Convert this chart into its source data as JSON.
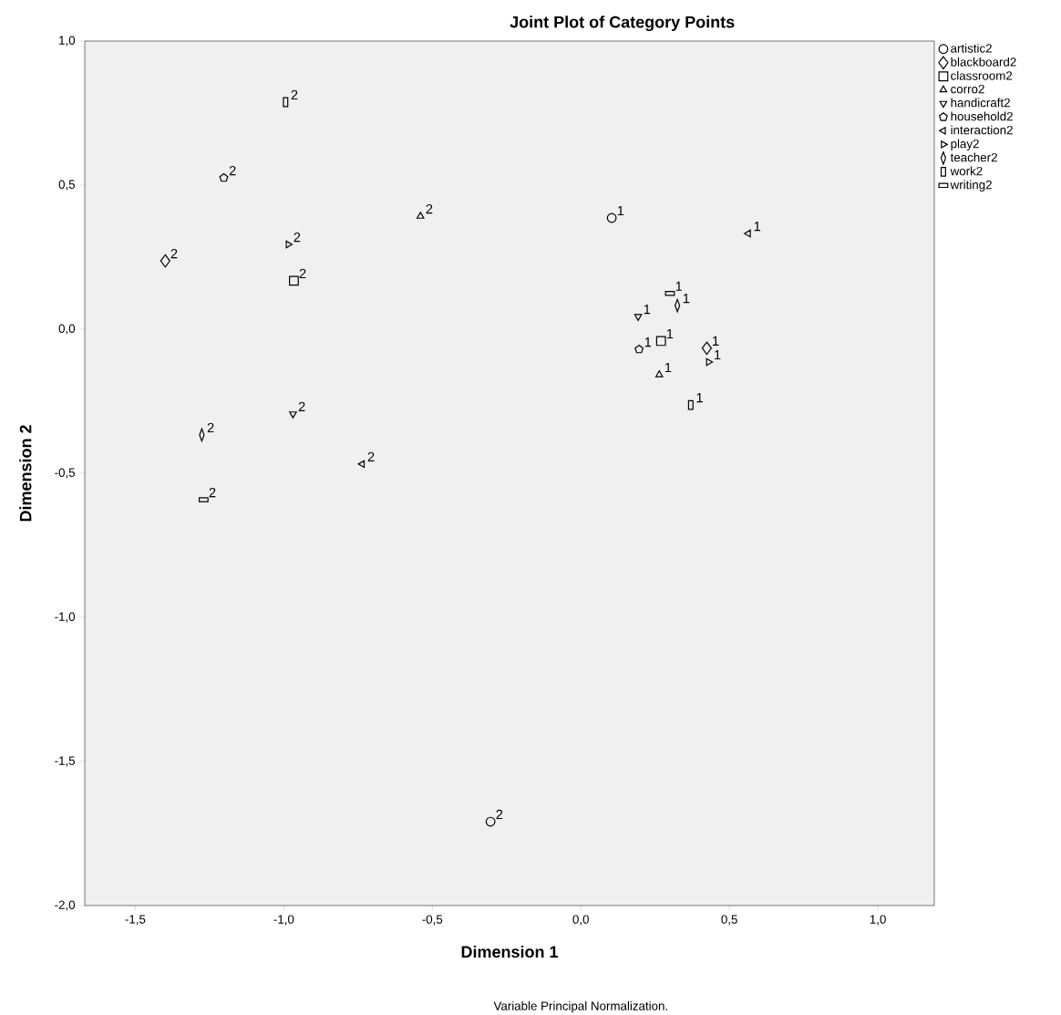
{
  "chart_data": {
    "type": "scatter",
    "title": "Joint Plot of Category Points",
    "xlabel": "Dimension 1",
    "ylabel": "Dimension 2",
    "annotations": [
      "Variable Principal Normalization.",
      {
        "text": "1",
        "x": 0.104,
        "y": 0.386
      },
      {
        "text": "2",
        "x": -0.304,
        "y": -1.709
      },
      {
        "text": "1",
        "x": 0.424,
        "y": -0.066
      },
      {
        "text": "2",
        "x": -1.399,
        "y": 0.237
      },
      {
        "text": "1",
        "x": 0.27,
        "y": -0.041
      },
      {
        "text": "2",
        "x": -0.966,
        "y": 0.168
      },
      {
        "text": "1",
        "x": 0.264,
        "y": -0.158
      },
      {
        "text": "2",
        "x": -0.54,
        "y": 0.392
      },
      {
        "text": "1",
        "x": 0.193,
        "y": 0.044
      },
      {
        "text": "2",
        "x": -0.969,
        "y": -0.294
      },
      {
        "text": "1",
        "x": 0.196,
        "y": -0.07
      },
      {
        "text": "2",
        "x": -1.202,
        "y": 0.525
      },
      {
        "text": "1",
        "x": 0.564,
        "y": 0.332
      },
      {
        "text": "2",
        "x": -0.736,
        "y": -0.468
      },
      {
        "text": "1",
        "x": 0.43,
        "y": -0.114
      },
      {
        "text": "2",
        "x": -0.985,
        "y": 0.294
      },
      {
        "text": "1",
        "x": 0.325,
        "y": 0.082
      },
      {
        "text": "2",
        "x": -1.276,
        "y": -0.367
      },
      {
        "text": "1",
        "x": 0.37,
        "y": -0.263
      },
      {
        "text": "2",
        "x": -0.994,
        "y": 0.788
      },
      {
        "text": "1",
        "x": 0.3,
        "y": 0.124
      },
      {
        "text": "2",
        "x": -1.27,
        "y": -0.592
      }
    ],
    "xlim": [
      -1.67,
      1.19
    ],
    "ylim": [
      -2.0,
      1.0
    ],
    "xticks": [
      {
        "value": -1.5,
        "label": "-1,5"
      },
      {
        "value": -1.0,
        "label": "-1,0"
      },
      {
        "value": -0.5,
        "label": "-0,5"
      },
      {
        "value": 0.0,
        "label": "0,0"
      },
      {
        "value": 0.5,
        "label": "0,5"
      },
      {
        "value": 1.0,
        "label": "1,0"
      }
    ],
    "yticks": [
      {
        "value": -2.0,
        "label": "-2,0"
      },
      {
        "value": -1.5,
        "label": "-1,5"
      },
      {
        "value": -1.0,
        "label": "-1,0"
      },
      {
        "value": -0.5,
        "label": "-0,5"
      },
      {
        "value": 0.0,
        "label": "0,0"
      },
      {
        "value": 0.5,
        "label": "0,5"
      },
      {
        "value": 1.0,
        "label": "1,0"
      }
    ],
    "legend": "right",
    "series": [
      {
        "name": "artistic2",
        "color": "#000000",
        "marker": "circle",
        "x": [
          0.104,
          -0.304
        ],
        "values": [
          0.386,
          -1.709
        ]
      },
      {
        "name": "blackboard2",
        "color": "#000000",
        "marker": "diamond",
        "x": [
          0.424,
          -1.399
        ],
        "values": [
          -0.066,
          0.237
        ]
      },
      {
        "name": "classroom2",
        "color": "#000000",
        "marker": "square",
        "x": [
          0.27,
          -0.966
        ],
        "values": [
          -0.041,
          0.168
        ]
      },
      {
        "name": "corro2",
        "color": "#000000",
        "marker": "triangle",
        "x": [
          0.264,
          -0.54
        ],
        "values": [
          -0.158,
          0.392
        ]
      },
      {
        "name": "handicraft2",
        "color": "#000000",
        "marker": "triangle",
        "x": [
          0.193,
          -0.969
        ],
        "values": [
          0.044,
          -0.294
        ]
      },
      {
        "name": "household2",
        "color": "#000000",
        "x": [
          0.196,
          -1.202
        ],
        "values": [
          -0.07,
          0.525
        ]
      },
      {
        "name": "interaction2",
        "color": "#000000",
        "marker": "triangle",
        "x": [
          0.564,
          -0.736
        ],
        "values": [
          0.332,
          -0.468
        ]
      },
      {
        "name": "play2",
        "color": "#000000",
        "marker": "triangle",
        "x": [
          0.43,
          -0.985
        ],
        "values": [
          -0.114,
          0.294
        ]
      },
      {
        "name": "teacher2",
        "color": "#000000",
        "marker": "diamond",
        "x": [
          0.325,
          -1.276
        ],
        "values": [
          0.082,
          -0.367
        ]
      },
      {
        "name": "work2",
        "color": "#000000",
        "marker": "square",
        "x": [
          0.37,
          -0.994
        ],
        "values": [
          -0.263,
          0.788
        ]
      },
      {
        "name": "writing2",
        "color": "#000000",
        "marker": "square",
        "x": [
          0.3,
          -1.27
        ],
        "values": [
          0.124,
          -0.592
        ]
      }
    ]
  }
}
